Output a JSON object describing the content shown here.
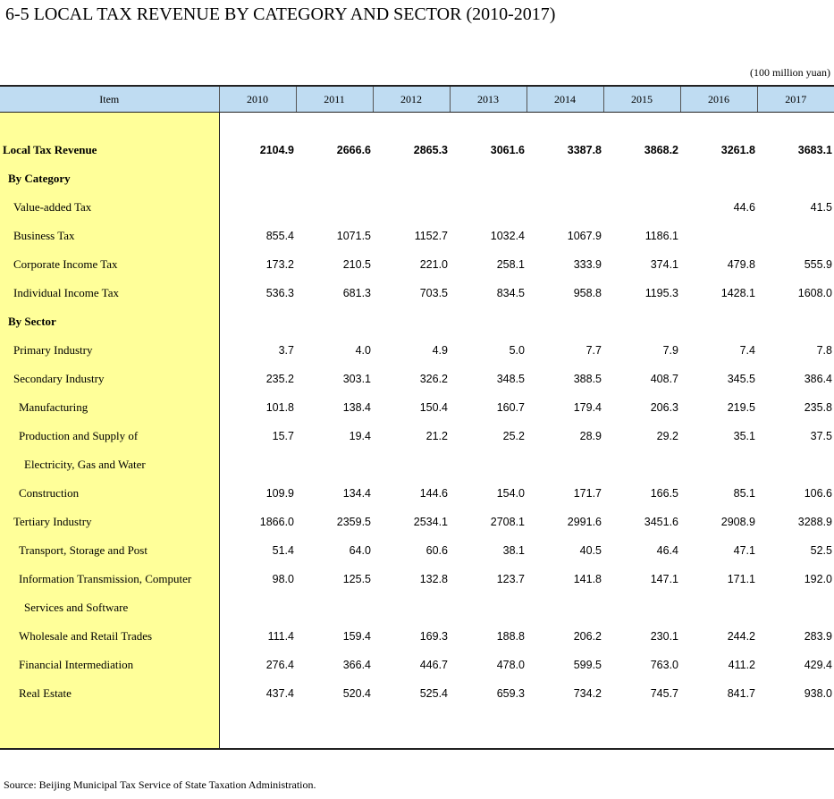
{
  "title": "6-5  LOCAL TAX REVENUE BY CATEGORY AND SECTOR (2010-2017)",
  "unit": "(100 million yuan)",
  "header": {
    "item": "Item",
    "years": [
      "2010",
      "2011",
      "2012",
      "2013",
      "2014",
      "2015",
      "2016",
      "2017"
    ]
  },
  "rows": [
    {
      "label": "Local Tax Revenue",
      "values": [
        "2104.9",
        "2666.6",
        "2865.3",
        "3061.6",
        "3387.8",
        "3868.2",
        "3261.8",
        "3683.1"
      ]
    },
    {
      "label": "By Category",
      "values": [
        "",
        "",
        "",
        "",
        "",
        "",
        "",
        ""
      ]
    },
    {
      "label": "Value-added Tax",
      "values": [
        "",
        "",
        "",
        "",
        "",
        "",
        "44.6",
        "41.5"
      ]
    },
    {
      "label": "Business Tax",
      "values": [
        "855.4",
        "1071.5",
        "1152.7",
        "1032.4",
        "1067.9",
        "1186.1",
        "",
        ""
      ]
    },
    {
      "label": "Corporate Income Tax",
      "values": [
        "173.2",
        "210.5",
        "221.0",
        "258.1",
        "333.9",
        "374.1",
        "479.8",
        "555.9"
      ]
    },
    {
      "label": "Individual Income Tax",
      "values": [
        "536.3",
        "681.3",
        "703.5",
        "834.5",
        "958.8",
        "1195.3",
        "1428.1",
        "1608.0"
      ]
    },
    {
      "label": "By Sector",
      "values": [
        "",
        "",
        "",
        "",
        "",
        "",
        "",
        ""
      ]
    },
    {
      "label": "Primary Industry",
      "values": [
        "3.7",
        "4.0",
        "4.9",
        "5.0",
        "7.7",
        "7.9",
        "7.4",
        "7.8"
      ]
    },
    {
      "label": "Secondary Industry",
      "values": [
        "235.2",
        "303.1",
        "326.2",
        "348.5",
        "388.5",
        "408.7",
        "345.5",
        "386.4"
      ]
    },
    {
      "label": "Manufacturing",
      "values": [
        "101.8",
        "138.4",
        "150.4",
        "160.7",
        "179.4",
        "206.3",
        "219.5",
        "235.8"
      ]
    },
    {
      "label": "Production and Supply of",
      "values": [
        "15.7",
        "19.4",
        "21.2",
        "25.2",
        "28.9",
        "29.2",
        "35.1",
        "37.5"
      ]
    },
    {
      "label": "Electricity, Gas and Water",
      "values": [
        "",
        "",
        "",
        "",
        "",
        "",
        "",
        ""
      ]
    },
    {
      "label": "Construction",
      "values": [
        "109.9",
        "134.4",
        "144.6",
        "154.0",
        "171.7",
        "166.5",
        "85.1",
        "106.6"
      ]
    },
    {
      "label": "Tertiary Industry",
      "values": [
        "1866.0",
        "2359.5",
        "2534.1",
        "2708.1",
        "2991.6",
        "3451.6",
        "2908.9",
        "3288.9"
      ]
    },
    {
      "label": "Transport, Storage and Post",
      "values": [
        "51.4",
        "64.0",
        "60.6",
        "38.1",
        "40.5",
        "46.4",
        "47.1",
        "52.5"
      ]
    },
    {
      "label": "Information Transmission, Computer",
      "values": [
        "98.0",
        "125.5",
        "132.8",
        "123.7",
        "141.8",
        "147.1",
        "171.1",
        "192.0"
      ]
    },
    {
      "label": "Services and Software",
      "values": [
        "",
        "",
        "",
        "",
        "",
        "",
        "",
        ""
      ]
    },
    {
      "label": "Wholesale and Retail Trades",
      "values": [
        "111.4",
        "159.4",
        "169.3",
        "188.8",
        "206.2",
        "230.1",
        "244.2",
        "283.9"
      ]
    },
    {
      "label": "Financial Intermediation",
      "values": [
        "276.4",
        "366.4",
        "446.7",
        "478.0",
        "599.5",
        "763.0",
        "411.2",
        "429.4"
      ]
    },
    {
      "label": "Real Estate",
      "values": [
        "437.4",
        "520.4",
        "525.4",
        "659.3",
        "734.2",
        "745.7",
        "841.7",
        "938.0"
      ]
    }
  ],
  "source": "Source: Beijing Municipal Tax Service of State Taxation Administration."
}
